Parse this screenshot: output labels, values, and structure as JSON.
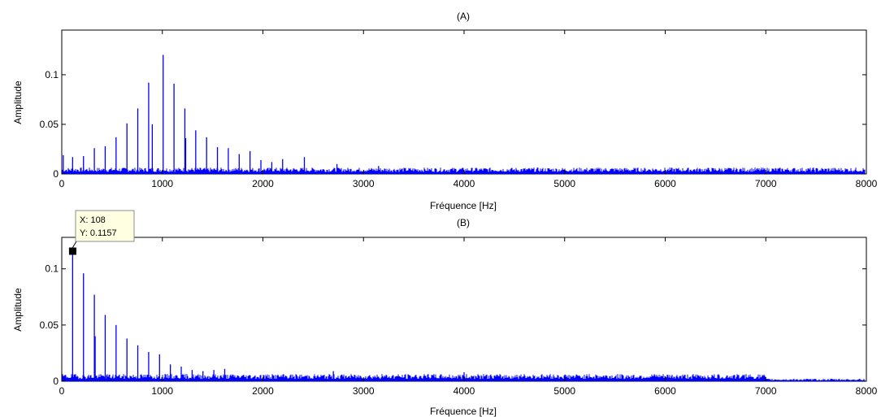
{
  "chart_data": [
    {
      "type": "line",
      "title": "(A)",
      "xlabel": "Fréquence [Hz]",
      "ylabel": "Amplitude",
      "xlim": [
        0,
        8000
      ],
      "ylim": [
        0,
        0.145
      ],
      "xticks": [
        "0",
        "1000",
        "2000",
        "3000",
        "4000",
        "5000",
        "6000",
        "7000",
        "8000"
      ],
      "yticks": [
        "0",
        "0.05",
        "0.1"
      ],
      "grid": false,
      "series_color": "#0000ff",
      "noise_floor": 0.004,
      "peaks": [
        {
          "x": 15,
          "y": 0.019
        },
        {
          "x": 108,
          "y": 0.017
        },
        {
          "x": 216,
          "y": 0.018
        },
        {
          "x": 324,
          "y": 0.026
        },
        {
          "x": 432,
          "y": 0.028
        },
        {
          "x": 540,
          "y": 0.037
        },
        {
          "x": 648,
          "y": 0.051
        },
        {
          "x": 756,
          "y": 0.066
        },
        {
          "x": 864,
          "y": 0.092
        },
        {
          "x": 900,
          "y": 0.05
        },
        {
          "x": 1008,
          "y": 0.12
        },
        {
          "x": 1116,
          "y": 0.091
        },
        {
          "x": 1224,
          "y": 0.066
        },
        {
          "x": 1232,
          "y": 0.036
        },
        {
          "x": 1332,
          "y": 0.044
        },
        {
          "x": 1440,
          "y": 0.037
        },
        {
          "x": 1548,
          "y": 0.027
        },
        {
          "x": 1656,
          "y": 0.026
        },
        {
          "x": 1764,
          "y": 0.02
        },
        {
          "x": 1872,
          "y": 0.023
        },
        {
          "x": 1980,
          "y": 0.014
        },
        {
          "x": 2088,
          "y": 0.012
        },
        {
          "x": 2196,
          "y": 0.015
        },
        {
          "x": 2412,
          "y": 0.017
        },
        {
          "x": 2736,
          "y": 0.01
        },
        {
          "x": 3150,
          "y": 0.008
        }
      ]
    },
    {
      "type": "line",
      "title": "(B)",
      "xlabel": "Fréquence [Hz]",
      "ylabel": "Amplitude",
      "xlim": [
        0,
        8000
      ],
      "ylim": [
        0,
        0.128
      ],
      "xticks": [
        "0",
        "1000",
        "2000",
        "3000",
        "4000",
        "5000",
        "6000",
        "7000",
        "8000"
      ],
      "yticks": [
        "0",
        "0.05",
        "0.1"
      ],
      "grid": false,
      "series_color": "#0000ff",
      "noise_floor": 0.004,
      "peaks": [
        {
          "x": 108,
          "y": 0.1157
        },
        {
          "x": 216,
          "y": 0.096
        },
        {
          "x": 324,
          "y": 0.077
        },
        {
          "x": 332,
          "y": 0.04
        },
        {
          "x": 432,
          "y": 0.059
        },
        {
          "x": 540,
          "y": 0.05
        },
        {
          "x": 648,
          "y": 0.038
        },
        {
          "x": 756,
          "y": 0.032
        },
        {
          "x": 864,
          "y": 0.026
        },
        {
          "x": 972,
          "y": 0.024
        },
        {
          "x": 1080,
          "y": 0.015
        },
        {
          "x": 1188,
          "y": 0.013
        },
        {
          "x": 1296,
          "y": 0.01
        },
        {
          "x": 1404,
          "y": 0.009
        },
        {
          "x": 1512,
          "y": 0.01
        },
        {
          "x": 1620,
          "y": 0.011
        },
        {
          "x": 2700,
          "y": 0.009
        },
        {
          "x": 4000,
          "y": 0.008
        }
      ],
      "datatip": {
        "x_label": "X: 108",
        "y_label": "Y: 0.1157",
        "x": 108,
        "y": 0.1157
      }
    }
  ]
}
